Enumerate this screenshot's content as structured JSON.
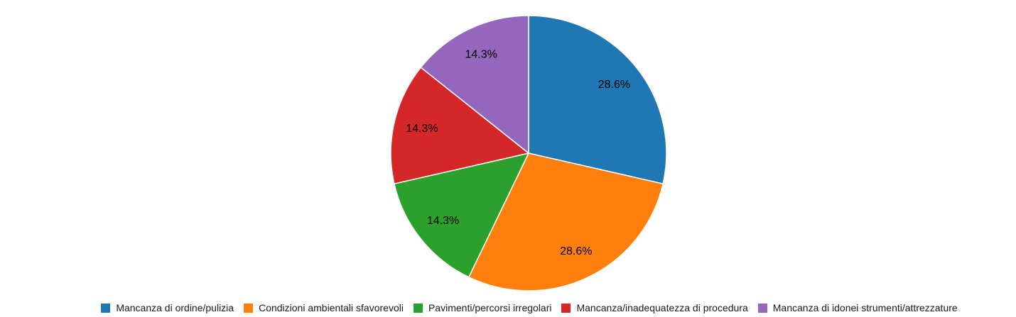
{
  "chart_data": {
    "type": "pie",
    "title": "",
    "start_angle_deg": 0,
    "direction": "clockwise",
    "legend_position": "bottom",
    "background_color": "#ffffff",
    "slice_border_color": "#ffffff",
    "label_color": "#000000",
    "label_position": "inside",
    "categories": [
      "Mancanza di ordine/pulizia",
      "Condizioni ambientali sfavorevoli",
      "Pavimenti/percorsi irregolari",
      "Mancanza/inadequatezza di procedura",
      "Mancanza di idonei strumenti/attrezzature"
    ],
    "values": [
      28.6,
      28.6,
      14.3,
      14.3,
      14.3
    ],
    "slices": [
      {
        "label": "Mancanza di ordine/pulizia",
        "percent": 28.6,
        "percent_label": "28.6%",
        "color": "#1f77b4"
      },
      {
        "label": "Condizioni ambientali sfavorevoli",
        "percent": 28.6,
        "percent_label": "28.6%",
        "color": "#ff7f0e"
      },
      {
        "label": "Pavimenti/percorsi irregolari",
        "percent": 14.3,
        "percent_label": "14.3%",
        "color": "#2ca02c"
      },
      {
        "label": "Mancanza/inadequatezza di procedura",
        "percent": 14.3,
        "percent_label": "14.3%",
        "color": "#d62728"
      },
      {
        "label": "Mancanza di idonei strumenti/attrezzature",
        "percent": 14.3,
        "percent_label": "14.3%",
        "color": "#9467bd"
      }
    ]
  }
}
